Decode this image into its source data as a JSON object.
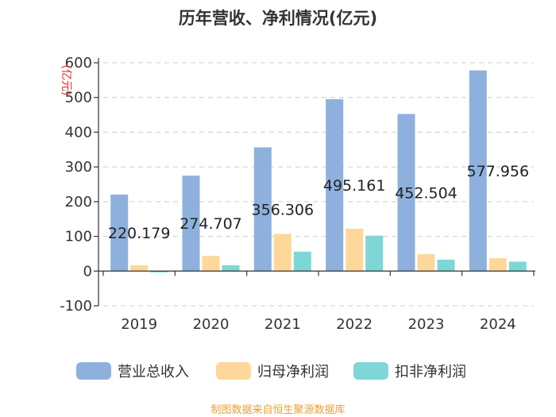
{
  "chart_data": {
    "type": "bar",
    "title": "历年营收、净利情况(亿元)",
    "ylabel": "(亿元)",
    "xlabel": "",
    "ylim": [
      -100,
      600
    ],
    "yticks": [
      -100,
      0,
      100,
      200,
      300,
      400,
      500,
      600
    ],
    "grid": true,
    "legend_position": "bottom",
    "categories": [
      "2019",
      "2020",
      "2021",
      "2022",
      "2023",
      "2024"
    ],
    "series": [
      {
        "name": "营业总收入",
        "color": "#8eb0dd",
        "values": [
          220.179,
          274.707,
          356.306,
          495.161,
          452.504,
          577.956
        ],
        "labels": [
          "220.179",
          "274.707",
          "356.306",
          "495.161",
          "452.504",
          "577.956"
        ]
      },
      {
        "name": "归母净利润",
        "color": "#fdd89a",
        "values": [
          17,
          44,
          107,
          122,
          49,
          37
        ]
      },
      {
        "name": "扣非净利润",
        "color": "#7fd6d6",
        "values": [
          -4,
          17,
          56,
          102,
          33,
          27
        ]
      }
    ]
  },
  "footer": {
    "source": "制图数据来自恒生聚源数据库",
    "source_color": "#e9a030"
  },
  "colors": {
    "ylabel": "#e03030",
    "axis": "#333333",
    "grid": "#cccccc"
  }
}
